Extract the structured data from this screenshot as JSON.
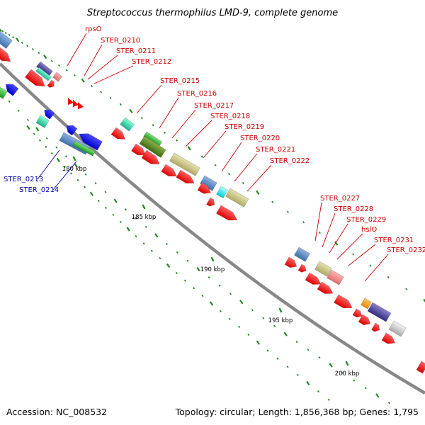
{
  "title": "Streptococcus thermophilus LMD-9, complete genome",
  "footer": {
    "accession": "Accession: NC_008532",
    "summary": "Topology: circular; Length: 1,856,368 bp; Genes: 1,795"
  },
  "tick_labels": [
    "180 kbp",
    "185 kbp",
    "190 kbp",
    "195 kbp",
    "200 kbp"
  ],
  "gene_labels_forward": [
    "rpsO",
    "STER_0210",
    "STER_0211",
    "STER_0212",
    "STER_0215",
    "STER_0216",
    "STER_0217",
    "STER_0218",
    "STER_0219",
    "STER_0220",
    "STER_0221",
    "STER_0222",
    "STER_0227",
    "STER_0228",
    "STER_0229",
    "hslO",
    "STER_0231",
    "STER_0232"
  ],
  "gene_labels_reverse": [
    "STER_0213",
    "STER_0214"
  ],
  "colors": {
    "forward_label": "#cc0000",
    "reverse_label": "#0000aa",
    "backbone": "#888888",
    "tick": "#228b22",
    "cds_forward": "#ff0000",
    "cds_reverse": "#0000ee"
  }
}
